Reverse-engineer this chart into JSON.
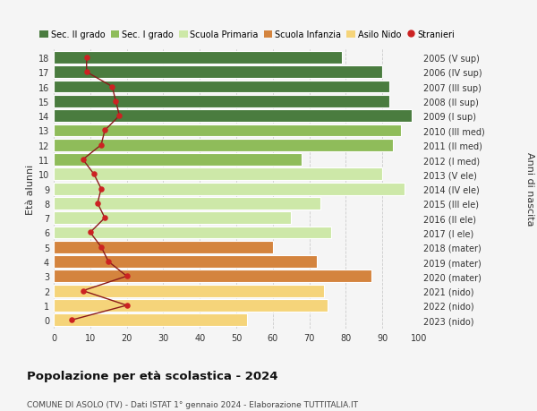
{
  "ages": [
    0,
    1,
    2,
    3,
    4,
    5,
    6,
    7,
    8,
    9,
    10,
    11,
    12,
    13,
    14,
    15,
    16,
    17,
    18
  ],
  "right_labels": [
    "2023 (nido)",
    "2022 (nido)",
    "2021 (nido)",
    "2020 (mater)",
    "2019 (mater)",
    "2018 (mater)",
    "2017 (I ele)",
    "2016 (II ele)",
    "2015 (III ele)",
    "2014 (IV ele)",
    "2013 (V ele)",
    "2012 (I med)",
    "2011 (II med)",
    "2010 (III med)",
    "2009 (I sup)",
    "2008 (II sup)",
    "2007 (III sup)",
    "2006 (IV sup)",
    "2005 (V sup)"
  ],
  "bar_values": [
    53,
    75,
    74,
    87,
    72,
    60,
    76,
    65,
    73,
    96,
    90,
    68,
    93,
    95,
    98,
    92,
    92,
    90,
    79
  ],
  "bar_colors": [
    "#f5d47a",
    "#f5d47a",
    "#f5d47a",
    "#d4843e",
    "#d4843e",
    "#d4843e",
    "#cde8a8",
    "#cde8a8",
    "#cde8a8",
    "#cde8a8",
    "#cde8a8",
    "#8fbc5a",
    "#8fbc5a",
    "#8fbc5a",
    "#4a7c3f",
    "#4a7c3f",
    "#4a7c3f",
    "#4a7c3f",
    "#4a7c3f"
  ],
  "stranieri_values": [
    5,
    20,
    8,
    20,
    15,
    13,
    10,
    14,
    12,
    13,
    11,
    8,
    13,
    14,
    18,
    17,
    16,
    9,
    9
  ],
  "legend_labels": [
    "Sec. II grado",
    "Sec. I grado",
    "Scuola Primaria",
    "Scuola Infanzia",
    "Asilo Nido",
    "Stranieri"
  ],
  "legend_colors": [
    "#4a7c3f",
    "#8fbc5a",
    "#cde8a8",
    "#d4843e",
    "#f5d47a",
    "#cc2222"
  ],
  "title": "Popolazione per età scolastica - 2024",
  "subtitle": "COMUNE DI ASOLO (TV) - Dati ISTAT 1° gennaio 2024 - Elaborazione TUTTITALIA.IT",
  "ylabel_left": "Età alunni",
  "ylabel_right": "Anni di nascita",
  "xlim": [
    0,
    100
  ],
  "background_color": "#f5f5f5",
  "bar_height": 0.85,
  "stranieri_color": "#cc2222",
  "stranieri_line_color": "#8b1a1a"
}
